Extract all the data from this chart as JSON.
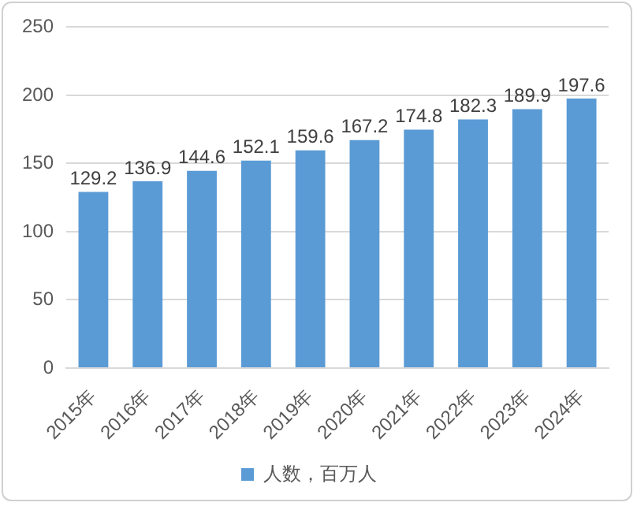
{
  "chart_data": {
    "type": "bar",
    "categories": [
      "2015年",
      "2016年",
      "2017年",
      "2018年",
      "2019年",
      "2020年",
      "2021年",
      "2022年",
      "2023年",
      "2024年"
    ],
    "series": [
      {
        "name": "人数，百万人",
        "color": "#5b9bd5",
        "values": [
          129.2,
          136.9,
          144.6,
          152.1,
          159.6,
          167.2,
          174.8,
          182.3,
          189.9,
          197.6
        ]
      }
    ],
    "ylim": [
      0,
      250
    ],
    "yticks": [
      0,
      50,
      100,
      150,
      200,
      250
    ],
    "grid": "y",
    "legend": "bottom",
    "data_labels": true
  }
}
